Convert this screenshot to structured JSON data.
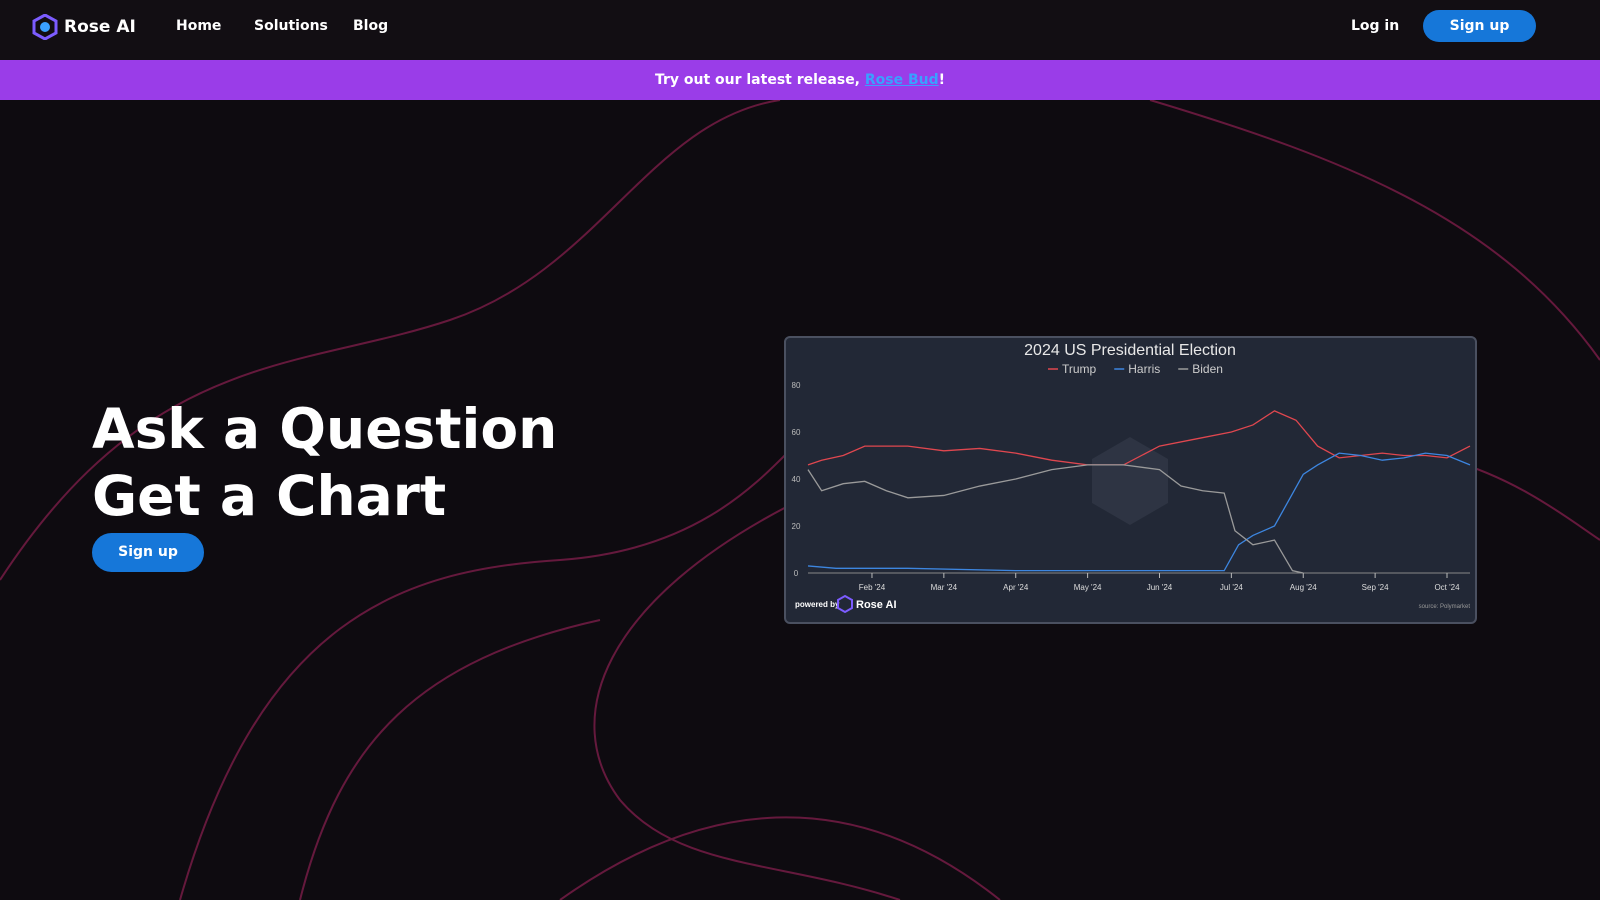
{
  "nav": {
    "brand": "Rose AI",
    "links": [
      "Home",
      "Solutions",
      "Blog"
    ],
    "login": "Log in",
    "signup": "Sign up"
  },
  "banner": {
    "text": "Try out our latest release,",
    "link": "Rose Bud",
    "suffix": "!"
  },
  "hero": {
    "title_line1": "Ask a Question",
    "title_line2": "Get a Chart",
    "cta": "Sign up"
  },
  "chart_data": {
    "type": "line",
    "title": "2024 US Presidential Election",
    "xlim": [
      0.11,
      9.32
    ],
    "xticks": [
      {
        "value": 1,
        "label": "Feb '24"
      },
      {
        "value": 2,
        "label": "Mar '24"
      },
      {
        "value": 3,
        "label": "Apr '24"
      },
      {
        "value": 4,
        "label": "May '24"
      },
      {
        "value": 5,
        "label": "Jun '24"
      },
      {
        "value": 6,
        "label": "Jul '24"
      },
      {
        "value": 7,
        "label": "Aug '24"
      },
      {
        "value": 8,
        "label": "Sep '24"
      },
      {
        "value": 9,
        "label": "Oct '24"
      }
    ],
    "ylim": [
      0,
      80
    ],
    "yticks": [
      0,
      20,
      40,
      60,
      80
    ],
    "series": [
      {
        "name": "Trump",
        "color": "#e0474f",
        "x": [
          0.11,
          0.3,
          0.6,
          0.9,
          1.2,
          1.5,
          2.0,
          2.5,
          3.0,
          3.5,
          4.0,
          4.5,
          5.0,
          5.5,
          6.0,
          6.3,
          6.6,
          6.9,
          7.2,
          7.5,
          7.8,
          8.1,
          8.4,
          8.7,
          9.0,
          9.32
        ],
        "values": [
          46,
          48,
          50,
          54,
          54,
          54,
          52,
          53,
          51,
          48,
          46,
          46,
          54,
          57,
          60,
          63,
          69,
          65,
          54,
          49,
          50,
          51,
          50,
          50,
          49,
          54
        ]
      },
      {
        "name": "Harris",
        "color": "#3d86e0",
        "x": [
          0.11,
          0.5,
          1.5,
          3.0,
          4.0,
          5.0,
          5.9,
          6.1,
          6.3,
          6.6,
          6.8,
          7.0,
          7.2,
          7.5,
          7.8,
          8.1,
          8.4,
          8.7,
          9.0,
          9.32
        ],
        "values": [
          3,
          2,
          2,
          1,
          1,
          1,
          1,
          12,
          16,
          20,
          31,
          42,
          46,
          51,
          50,
          48,
          49,
          51,
          50,
          46
        ]
      },
      {
        "name": "Biden",
        "color": "#9a9a9a",
        "x": [
          0.11,
          0.3,
          0.6,
          0.9,
          1.2,
          1.5,
          2.0,
          2.5,
          3.0,
          3.5,
          4.0,
          4.5,
          5.0,
          5.3,
          5.6,
          5.9,
          6.05,
          6.3,
          6.6,
          6.85,
          7.0
        ],
        "values": [
          44,
          35,
          38,
          39,
          35,
          32,
          33,
          37,
          40,
          44,
          46,
          46,
          44,
          37,
          35,
          34,
          18,
          12,
          14,
          1,
          0
        ]
      }
    ],
    "footer_left": "powered by",
    "footer_brand": "Rose AI",
    "source": "source: Polymarket"
  }
}
